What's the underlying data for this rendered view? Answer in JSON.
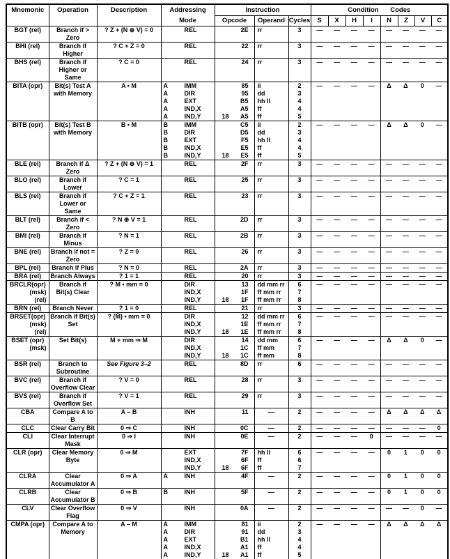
{
  "table": {
    "headers": {
      "mnemonic": "Mnemonic",
      "operation": "Operation",
      "description": "Description",
      "addressing_line1": "Addressing",
      "addressing_line2": "Mode",
      "instruction": "Instruction",
      "condition_codes": "Condition Codes",
      "opcode": "Opcode",
      "operand": "Operand",
      "cycles": "Cycles"
    },
    "condition_columns": [
      "S",
      "X",
      "H",
      "I",
      "N",
      "Z",
      "V",
      "C"
    ],
    "rows": [
      {
        "mnemonic": [
          "BGT (rel)"
        ],
        "operation": [
          "Branch if >",
          "Zero"
        ],
        "description": "? Z + (N ⊕ V) = 0",
        "modes": [
          {
            "mode": "REL",
            "opcode": "2E",
            "operand": "rr",
            "cycles": "3"
          }
        ],
        "cc": [
          "—",
          "—",
          "—",
          "—",
          "—",
          "—",
          "—",
          "—"
        ]
      },
      {
        "mnemonic": [
          "BHI (rel)"
        ],
        "operation": [
          "Branch if",
          "Higher"
        ],
        "description": "? C + Z = 0",
        "modes": [
          {
            "mode": "REL",
            "opcode": "22",
            "operand": "rr",
            "cycles": "3"
          }
        ],
        "cc": [
          "—",
          "—",
          "—",
          "—",
          "—",
          "—",
          "—",
          "—"
        ]
      },
      {
        "mnemonic": [
          "BHS (rel)"
        ],
        "operation": [
          "Branch if",
          "Higher or",
          "Same"
        ],
        "description": "? C = 0",
        "modes": [
          {
            "mode": "REL",
            "opcode": "24",
            "operand": "rr",
            "cycles": "3"
          }
        ],
        "cc": [
          "—",
          "—",
          "—",
          "—",
          "—",
          "—",
          "—",
          "—"
        ]
      },
      {
        "mnemonic": [
          "BITA (opr)"
        ],
        "operation": [
          "Bit(s) Test A",
          "with Memory"
        ],
        "description": "A • M",
        "modes": [
          {
            "reg": "A",
            "mode": "IMM",
            "opcode": "85",
            "operand": "ii",
            "cycles": "2"
          },
          {
            "reg": "A",
            "mode": "DIR",
            "opcode": "95",
            "operand": "dd",
            "cycles": "3"
          },
          {
            "reg": "A",
            "mode": "EXT",
            "opcode": "B5",
            "operand": "hh ll",
            "cycles": "4"
          },
          {
            "reg": "A",
            "mode": "IND,X",
            "opcode": "A5",
            "operand": "ff",
            "cycles": "4"
          },
          {
            "reg": "A",
            "mode": "IND,Y",
            "prefix": "18",
            "opcode": "A5",
            "operand": "ff",
            "cycles": "5"
          }
        ],
        "cc": [
          "—",
          "—",
          "—",
          "—",
          "Δ",
          "Δ",
          "0",
          "—"
        ]
      },
      {
        "mnemonic": [
          "BITB (opr)"
        ],
        "operation": [
          "Bit(s) Test B",
          "with Memory"
        ],
        "description": "B • M",
        "modes": [
          {
            "reg": "B",
            "mode": "IMM",
            "opcode": "C5",
            "operand": "ii",
            "cycles": "2"
          },
          {
            "reg": "B",
            "mode": "DIR",
            "opcode": "D5",
            "operand": "dd",
            "cycles": "3"
          },
          {
            "reg": "B",
            "mode": "EXT",
            "opcode": "F5",
            "operand": "hh ll",
            "cycles": "4"
          },
          {
            "reg": "B",
            "mode": "IND,X",
            "opcode": "E5",
            "operand": "ff",
            "cycles": "4"
          },
          {
            "reg": "B",
            "mode": "IND,Y",
            "prefix": "18",
            "opcode": "E5",
            "operand": "ff",
            "cycles": "5"
          }
        ],
        "cc": [
          "—",
          "—",
          "—",
          "—",
          "Δ",
          "Δ",
          "0",
          "—"
        ]
      },
      {
        "mnemonic": [
          "BLE (rel)"
        ],
        "operation": [
          "Branch if Δ",
          "Zero"
        ],
        "description": "? Z + (N ⊕ V) = 1",
        "modes": [
          {
            "mode": "REL",
            "opcode": "2F",
            "operand": "rr",
            "cycles": "3"
          }
        ],
        "cc": [
          "—",
          "—",
          "—",
          "—",
          "—",
          "—",
          "—",
          "—"
        ]
      },
      {
        "mnemonic": [
          "BLO (rel)"
        ],
        "operation": [
          "Branch if",
          "Lower"
        ],
        "description": "? C = 1",
        "modes": [
          {
            "mode": "REL",
            "opcode": "25",
            "operand": "rr",
            "cycles": "3"
          }
        ],
        "cc": [
          "—",
          "—",
          "—",
          "—",
          "—",
          "—",
          "—",
          "—"
        ]
      },
      {
        "mnemonic": [
          "BLS (rel)"
        ],
        "operation": [
          "Branch if",
          "Lower or",
          "Same"
        ],
        "description": "? C + Z = 1",
        "modes": [
          {
            "mode": "REL",
            "opcode": "23",
            "operand": "rr",
            "cycles": "3"
          }
        ],
        "cc": [
          "—",
          "—",
          "—",
          "—",
          "—",
          "—",
          "—",
          "—"
        ]
      },
      {
        "mnemonic": [
          "BLT (rel)"
        ],
        "operation": [
          "Branch if <",
          "Zero"
        ],
        "description": "? N ⊕ V = 1",
        "modes": [
          {
            "mode": "REL",
            "opcode": "2D",
            "operand": "rr",
            "cycles": "3"
          }
        ],
        "cc": [
          "—",
          "—",
          "—",
          "—",
          "—",
          "—",
          "—",
          "—"
        ]
      },
      {
        "mnemonic": [
          "BMI (rel)"
        ],
        "operation": [
          "Branch if",
          "Minus"
        ],
        "description": "? N = 1",
        "modes": [
          {
            "mode": "REL",
            "opcode": "2B",
            "operand": "rr",
            "cycles": "3"
          }
        ],
        "cc": [
          "—",
          "—",
          "—",
          "—",
          "—",
          "—",
          "—",
          "—"
        ]
      },
      {
        "mnemonic": [
          "BNE (rel)"
        ],
        "operation": [
          "Branch if not =",
          "Zero"
        ],
        "description": "? Z = 0",
        "modes": [
          {
            "mode": "REL",
            "opcode": "26",
            "operand": "rr",
            "cycles": "3"
          }
        ],
        "cc": [
          "—",
          "—",
          "—",
          "—",
          "—",
          "—",
          "—",
          "—"
        ]
      },
      {
        "mnemonic": [
          "BPL (rel)"
        ],
        "operation": [
          "Branch if Plus"
        ],
        "description": "? N = 0",
        "modes": [
          {
            "mode": "REL",
            "opcode": "2A",
            "operand": "rr",
            "cycles": "3"
          }
        ],
        "cc": [
          "—",
          "—",
          "—",
          "—",
          "—",
          "—",
          "—",
          "—"
        ]
      },
      {
        "mnemonic": [
          "BRA (rel)"
        ],
        "operation": [
          "Branch Always"
        ],
        "description": "? 1 = 1",
        "modes": [
          {
            "mode": "REL",
            "opcode": "20",
            "operand": "rr",
            "cycles": "3"
          }
        ],
        "cc": [
          "—",
          "—",
          "—",
          "—",
          "—",
          "—",
          "—",
          "—"
        ]
      },
      {
        "mnemonic": [
          "BRCLR(opr)",
          "(msk)",
          "(rel)"
        ],
        "operation": [
          "Branch if",
          "Bit(s) Clear"
        ],
        "description": "? M • mm = 0",
        "modes": [
          {
            "mode": "DIR",
            "opcode": "13",
            "operand": "dd mm rr",
            "cycles": "6"
          },
          {
            "mode": "IND,X",
            "opcode": "1F",
            "operand": "ff mm rr",
            "cycles": "7"
          },
          {
            "mode": "IND,Y",
            "prefix": "18",
            "opcode": "1F",
            "operand": "ff mm rr",
            "cycles": "8"
          }
        ],
        "cc": [
          "—",
          "—",
          "—",
          "—",
          "—",
          "—",
          "—",
          "—"
        ]
      },
      {
        "mnemonic": [
          "BRN (rel)"
        ],
        "operation": [
          "Branch Never"
        ],
        "description": "? 1 = 0",
        "modes": [
          {
            "mode": "REL",
            "opcode": "21",
            "operand": "rr",
            "cycles": "3"
          }
        ],
        "cc": [
          "—",
          "—",
          "—",
          "—",
          "—",
          "—",
          "—",
          "—"
        ]
      },
      {
        "mnemonic": [
          "BRSET(opr)",
          "(msk)",
          "(rel)"
        ],
        "operation": [
          "Branch if Bit(s)",
          "Set"
        ],
        "description": "? (M̄) • mm = 0",
        "modes": [
          {
            "mode": "DIR",
            "opcode": "12",
            "operand": "dd mm rr",
            "cycles": "6"
          },
          {
            "mode": "IND,X",
            "opcode": "1E",
            "operand": "ff mm rr",
            "cycles": "7"
          },
          {
            "mode": "IND,Y",
            "prefix": "18",
            "opcode": "1E",
            "operand": "ff mm rr",
            "cycles": "8"
          }
        ],
        "cc": [
          "—",
          "—",
          "—",
          "—",
          "—",
          "—",
          "—",
          "—"
        ]
      },
      {
        "mnemonic": [
          "BSET (opr)",
          "(msk)"
        ],
        "operation": [
          "Set Bit(s)"
        ],
        "description": "M + mm ⇒ M",
        "modes": [
          {
            "mode": "DIR",
            "opcode": "14",
            "operand": "dd mm",
            "cycles": "6"
          },
          {
            "mode": "IND,X",
            "opcode": "1C",
            "operand": "ff mm",
            "cycles": "7"
          },
          {
            "mode": "IND,Y",
            "prefix": "18",
            "opcode": "1C",
            "operand": "ff mm",
            "cycles": "8"
          }
        ],
        "cc": [
          "—",
          "—",
          "—",
          "—",
          "Δ",
          "Δ",
          "0",
          "—"
        ]
      },
      {
        "mnemonic": [
          "BSR (rel)"
        ],
        "operation": [
          "Branch to",
          "Subroutine"
        ],
        "description": "See Figure 3–2",
        "desc_italic": true,
        "modes": [
          {
            "mode": "REL",
            "opcode": "8D",
            "operand": "rr",
            "cycles": "6"
          }
        ],
        "cc": [
          "—",
          "—",
          "—",
          "—",
          "—",
          "—",
          "—",
          "—"
        ]
      },
      {
        "mnemonic": [
          "BVC (rel)"
        ],
        "operation": [
          "Branch if",
          "Overflow Clear"
        ],
        "description": "? V = 0",
        "modes": [
          {
            "mode": "REL",
            "opcode": "28",
            "operand": "rr",
            "cycles": "3"
          }
        ],
        "cc": [
          "—",
          "—",
          "—",
          "—",
          "—",
          "—",
          "—",
          "—"
        ]
      },
      {
        "mnemonic": [
          "BVS (rel)"
        ],
        "operation": [
          "Branch if",
          "Overflow Set"
        ],
        "description": "? V = 1",
        "modes": [
          {
            "mode": "REL",
            "opcode": "29",
            "operand": "rr",
            "cycles": "3"
          }
        ],
        "cc": [
          "—",
          "—",
          "—",
          "—",
          "—",
          "—",
          "—",
          "—"
        ]
      },
      {
        "mnemonic": [
          "CBA"
        ],
        "operation": [
          "Compare A to",
          "B"
        ],
        "description": "A – B",
        "modes": [
          {
            "mode": "INH",
            "opcode": "11",
            "operand": "—",
            "cycles": "2"
          }
        ],
        "cc": [
          "—",
          "—",
          "—",
          "—",
          "Δ",
          "Δ",
          "Δ",
          "Δ"
        ]
      },
      {
        "mnemonic": [
          "CLC"
        ],
        "operation": [
          "Clear Carry Bit"
        ],
        "description": "0 ⇒ C",
        "modes": [
          {
            "mode": "INH",
            "opcode": "0C",
            "operand": "—",
            "cycles": "2"
          }
        ],
        "cc": [
          "—",
          "—",
          "—",
          "—",
          "—",
          "—",
          "—",
          "0"
        ]
      },
      {
        "mnemonic": [
          "CLI"
        ],
        "operation": [
          "Clear Interrupt",
          "Mask"
        ],
        "description": "0 ⇒ I",
        "modes": [
          {
            "mode": "INH",
            "opcode": "0E",
            "operand": "—",
            "cycles": "2"
          }
        ],
        "cc": [
          "—",
          "—",
          "—",
          "0",
          "—",
          "—",
          "—",
          "—"
        ]
      },
      {
        "mnemonic": [
          "CLR (opr)"
        ],
        "operation": [
          "Clear Memory",
          "Byte"
        ],
        "description": "0 ⇒ M",
        "modes": [
          {
            "mode": "EXT",
            "opcode": "7F",
            "operand": "hh ll",
            "cycles": "6"
          },
          {
            "mode": "IND,X",
            "opcode": "6F",
            "operand": "ff",
            "cycles": "6"
          },
          {
            "mode": "IND,Y",
            "prefix": "18",
            "opcode": "6F",
            "operand": "ff",
            "cycles": "7"
          }
        ],
        "cc": [
          "—",
          "—",
          "—",
          "—",
          "0",
          "1",
          "0",
          "0"
        ]
      },
      {
        "mnemonic": [
          "CLRA"
        ],
        "operation": [
          "Clear",
          "Accumulator A"
        ],
        "description": "0 ⇒ A",
        "modes": [
          {
            "reg": "A",
            "mode": "INH",
            "opcode": "4F",
            "operand": "—",
            "cycles": "2"
          }
        ],
        "cc": [
          "—",
          "—",
          "—",
          "—",
          "0",
          "1",
          "0",
          "0"
        ]
      },
      {
        "mnemonic": [
          "CLRB"
        ],
        "operation": [
          "Clear",
          "Accumulator B"
        ],
        "description": "0 ⇒ B",
        "modes": [
          {
            "reg": "B",
            "mode": "INH",
            "opcode": "5F",
            "operand": "—",
            "cycles": "2"
          }
        ],
        "cc": [
          "—",
          "—",
          "—",
          "—",
          "0",
          "1",
          "0",
          "0"
        ]
      },
      {
        "mnemonic": [
          "CLV"
        ],
        "operation": [
          "Clear Overflow",
          "Flag"
        ],
        "description": "0 ⇒ V",
        "modes": [
          {
            "mode": "INH",
            "opcode": "0A",
            "operand": "—",
            "cycles": "2"
          }
        ],
        "cc": [
          "—",
          "—",
          "—",
          "—",
          "—",
          "—",
          "0",
          "—"
        ]
      },
      {
        "mnemonic": [
          "CMPA (opr)"
        ],
        "operation": [
          "Compare A to",
          "Memory"
        ],
        "description": "A – M",
        "modes": [
          {
            "reg": "A",
            "mode": "IMM",
            "opcode": "81",
            "operand": "ii",
            "cycles": "2"
          },
          {
            "reg": "A",
            "mode": "DIR",
            "opcode": "91",
            "operand": "dd",
            "cycles": "3"
          },
          {
            "reg": "A",
            "mode": "EXT",
            "opcode": "B1",
            "operand": "hh ll",
            "cycles": "4"
          },
          {
            "reg": "A",
            "mode": "IND,X",
            "opcode": "A1",
            "operand": "ff",
            "cycles": "4"
          },
          {
            "reg": "A",
            "mode": "IND,Y",
            "prefix": "18",
            "opcode": "A1",
            "operand": "ff",
            "cycles": "5"
          }
        ],
        "cc": [
          "—",
          "—",
          "—",
          "—",
          "Δ",
          "Δ",
          "Δ",
          "Δ"
        ]
      }
    ]
  }
}
